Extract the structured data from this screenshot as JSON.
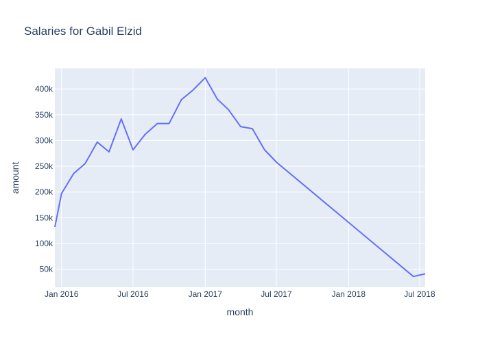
{
  "chart_data": {
    "type": "line",
    "title": "Salaries for Gabil Elzid",
    "xlabel": "month",
    "ylabel": "amount",
    "x_axis_type": "date",
    "xlim": [
      "2015-12-15",
      "2018-07-15"
    ],
    "ylim": [
      15000,
      440000
    ],
    "x_ticks": [
      {
        "date": "2016-01-01",
        "label": "Jan 2016"
      },
      {
        "date": "2016-07-01",
        "label": "Jul 2016"
      },
      {
        "date": "2017-01-01",
        "label": "Jan 2017"
      },
      {
        "date": "2017-07-01",
        "label": "Jul 2017"
      },
      {
        "date": "2018-01-01",
        "label": "Jan 2018"
      },
      {
        "date": "2018-07-01",
        "label": "Jul 2018"
      }
    ],
    "y_ticks": [
      {
        "value": 50000,
        "label": "50k"
      },
      {
        "value": 100000,
        "label": "100k"
      },
      {
        "value": 150000,
        "label": "150k"
      },
      {
        "value": 200000,
        "label": "200k"
      },
      {
        "value": 250000,
        "label": "250k"
      },
      {
        "value": 300000,
        "label": "300k"
      },
      {
        "value": 350000,
        "label": "350k"
      },
      {
        "value": 400000,
        "label": "400k"
      }
    ],
    "grid": true,
    "series": [
      {
        "color": "#636efa",
        "points": [
          {
            "x": "2015-12-15",
            "y": 132000
          },
          {
            "x": "2016-01-01",
            "y": 197000
          },
          {
            "x": "2016-02-01",
            "y": 236000
          },
          {
            "x": "2016-03-01",
            "y": 255000
          },
          {
            "x": "2016-04-01",
            "y": 297000
          },
          {
            "x": "2016-05-01",
            "y": 278000
          },
          {
            "x": "2016-06-01",
            "y": 342000
          },
          {
            "x": "2016-07-01",
            "y": 282000
          },
          {
            "x": "2016-08-01",
            "y": 312000
          },
          {
            "x": "2016-09-01",
            "y": 333000
          },
          {
            "x": "2016-10-01",
            "y": 333000
          },
          {
            "x": "2016-11-01",
            "y": 379000
          },
          {
            "x": "2016-12-01",
            "y": 398000
          },
          {
            "x": "2017-01-01",
            "y": 422000
          },
          {
            "x": "2017-02-01",
            "y": 380000
          },
          {
            "x": "2017-03-01",
            "y": 360000
          },
          {
            "x": "2017-04-01",
            "y": 327000
          },
          {
            "x": "2017-05-01",
            "y": 323000
          },
          {
            "x": "2017-06-01",
            "y": 282000
          },
          {
            "x": "2017-07-01",
            "y": 258000
          },
          {
            "x": "2018-06-15",
            "y": 36000
          },
          {
            "x": "2018-07-15",
            "y": 41000
          }
        ]
      }
    ],
    "colors": {
      "plot_background": "#e5ecf6",
      "gridline": "#ffffff",
      "text": "#2a3f5f"
    }
  }
}
